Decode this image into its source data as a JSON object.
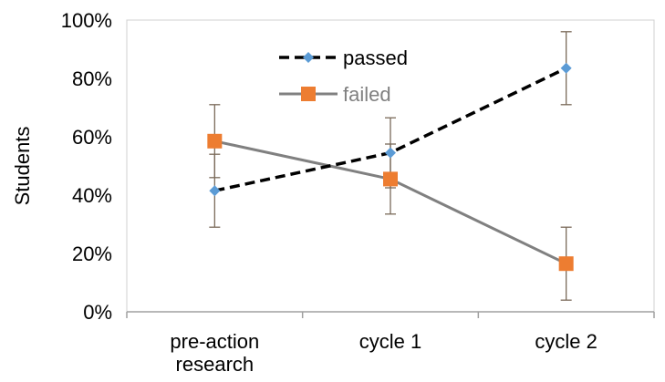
{
  "chart_data": {
    "type": "line",
    "categories": [
      [
        "pre-action",
        "research"
      ],
      [
        "cycle 1"
      ],
      [
        "cycle 2"
      ]
    ],
    "ylabel": "Students",
    "ylim": [
      0,
      100
    ],
    "yticks": [
      "0%",
      "20%",
      "40%",
      "60%",
      "80%",
      "100%"
    ],
    "ytick_values": [
      0,
      20,
      40,
      60,
      80,
      100
    ],
    "grid": false,
    "legend_position": "top-center",
    "series": [
      {
        "name": "passed",
        "values": [
          41.5,
          54.5,
          83.5
        ],
        "error": [
          12.5,
          12,
          12.5
        ],
        "line_color": "#000000",
        "line_style": "dashed",
        "marker": "diamond",
        "marker_color": "#5B9BD5",
        "legend_text_color": "#000000"
      },
      {
        "name": "failed",
        "values": [
          58.5,
          45.5,
          16.5
        ],
        "error": [
          12.5,
          12,
          12.5
        ],
        "line_color": "#808080",
        "line_style": "solid",
        "marker": "square",
        "marker_color": "#ED7D31",
        "legend_text_color": "#808080"
      }
    ]
  }
}
